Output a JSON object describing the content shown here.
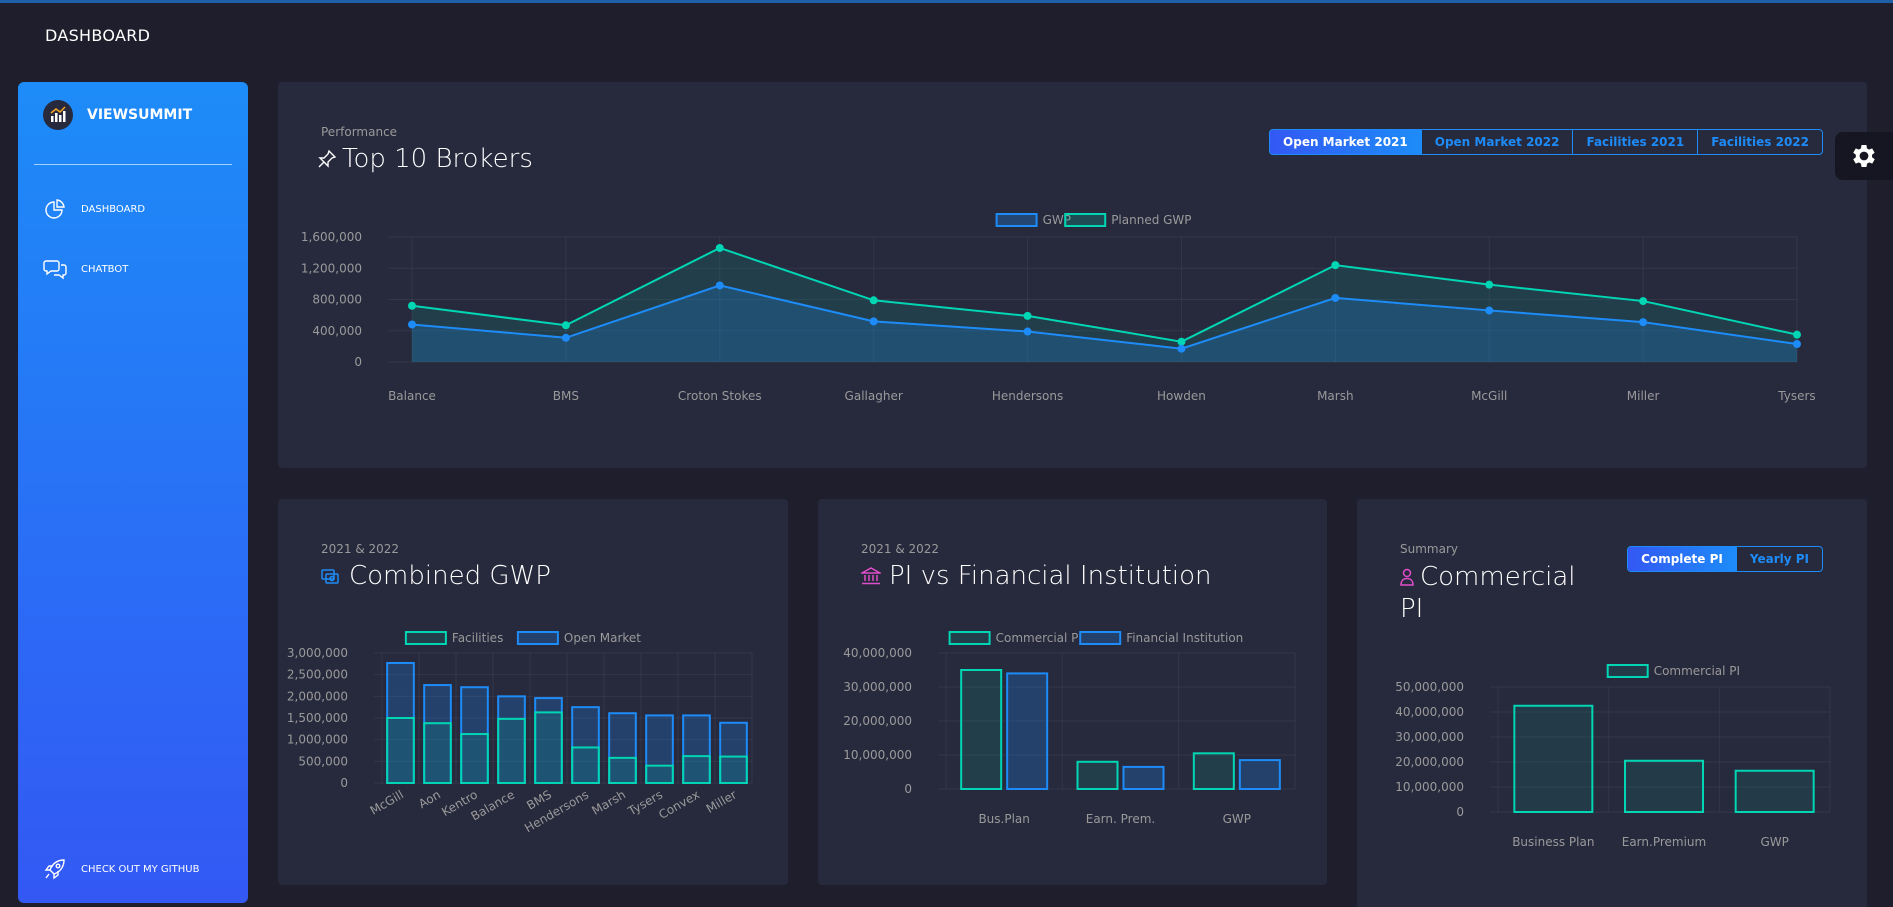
{
  "header": {
    "title": "DASHBOARD"
  },
  "sidebar": {
    "brand": "VIEWSUMMIT",
    "items": [
      {
        "label": "DASHBOARD",
        "icon": "pie-chart-icon"
      },
      {
        "label": "CHATBOT",
        "icon": "chat-bubbles-icon"
      }
    ],
    "footer": {
      "label": "CHECK OUT MY GITHUB",
      "icon": "rocket-icon"
    }
  },
  "colors": {
    "accent": "#1d8cf8",
    "teal": "#00d6b4",
    "card": "#27293d",
    "bg": "#1e1e2d",
    "pink": "#e14eca"
  },
  "performance": {
    "subtitle": "Performance",
    "title": "Top 10 Brokers",
    "tabs": [
      "Open Market 2021",
      "Open Market 2022",
      "Facilities 2021",
      "Facilities 2022"
    ],
    "active_tab": 0
  },
  "combined": {
    "subtitle": "2021 & 2022",
    "title": "Combined GWP"
  },
  "pi_fin": {
    "subtitle": "2021 & 2022",
    "title": "PI vs Financial Institution"
  },
  "commercial": {
    "subtitle": "Summary",
    "title_line1": "Commercial",
    "title_line2": "PI",
    "tabs": [
      "Complete PI",
      "Yearly PI"
    ],
    "active_tab": 0
  },
  "chart_data": [
    {
      "id": "top-brokers",
      "type": "line",
      "categories": [
        "Balance",
        "BMS",
        "Croton Stokes",
        "Gallagher",
        "Hendersons",
        "Howden",
        "Marsh",
        "McGill",
        "Miller",
        "Tysers"
      ],
      "series": [
        {
          "name": "GWP",
          "values": [
            480000,
            310000,
            980000,
            520000,
            390000,
            170000,
            820000,
            660000,
            510000,
            230000
          ]
        },
        {
          "name": "Planned GWP",
          "values": [
            720000,
            470000,
            1460000,
            790000,
            590000,
            260000,
            1240000,
            990000,
            780000,
            350000
          ]
        }
      ],
      "yticks": [
        "1,600,000",
        "1,200,000",
        "800,000",
        "400,000",
        "0"
      ],
      "ylim": [
        0,
        1600000
      ]
    },
    {
      "id": "combined-gwp",
      "type": "bar",
      "stacked": true,
      "categories": [
        "McGill",
        "Aon",
        "Kentro",
        "Balance",
        "BMS",
        "Hendersons",
        "Marsh",
        "Tysers",
        "Convex",
        "Miller"
      ],
      "series": [
        {
          "name": "Facilities",
          "values": [
            1500000,
            1380000,
            1130000,
            1480000,
            1630000,
            820000,
            580000,
            400000,
            620000,
            610000
          ]
        },
        {
          "name": "Open Market",
          "values": [
            1270000,
            880000,
            1080000,
            520000,
            330000,
            930000,
            1030000,
            1160000,
            940000,
            780000
          ]
        }
      ],
      "yticks": [
        "3,000,000",
        "2,500,000",
        "2,000,000",
        "1,500,000",
        "1,000,000",
        "500,000",
        "0"
      ],
      "ylim": [
        0,
        3000000
      ]
    },
    {
      "id": "pi-vs-fin",
      "type": "bar",
      "categories": [
        "Bus.Plan",
        "Earn. Prem.",
        "GWP"
      ],
      "series": [
        {
          "name": "Commercial PI",
          "values": [
            35000000,
            8000000,
            10500000
          ]
        },
        {
          "name": "Financial Institution",
          "values": [
            34000000,
            6500000,
            8500000
          ]
        }
      ],
      "yticks": [
        "40,000,000",
        "30,000,000",
        "20,000,000",
        "10,000,000",
        "0"
      ],
      "ylim": [
        0,
        40000000
      ]
    },
    {
      "id": "commercial-pi",
      "type": "bar",
      "categories": [
        "Business Plan",
        "Earn.Premium",
        "GWP"
      ],
      "series": [
        {
          "name": "Commercial PI",
          "values": [
            42500000,
            20500000,
            16500000
          ]
        }
      ],
      "yticks": [
        "50,000,000",
        "40,000,000",
        "30,000,000",
        "20,000,000",
        "10,000,000",
        "0"
      ],
      "ylim": [
        0,
        50000000
      ]
    }
  ]
}
